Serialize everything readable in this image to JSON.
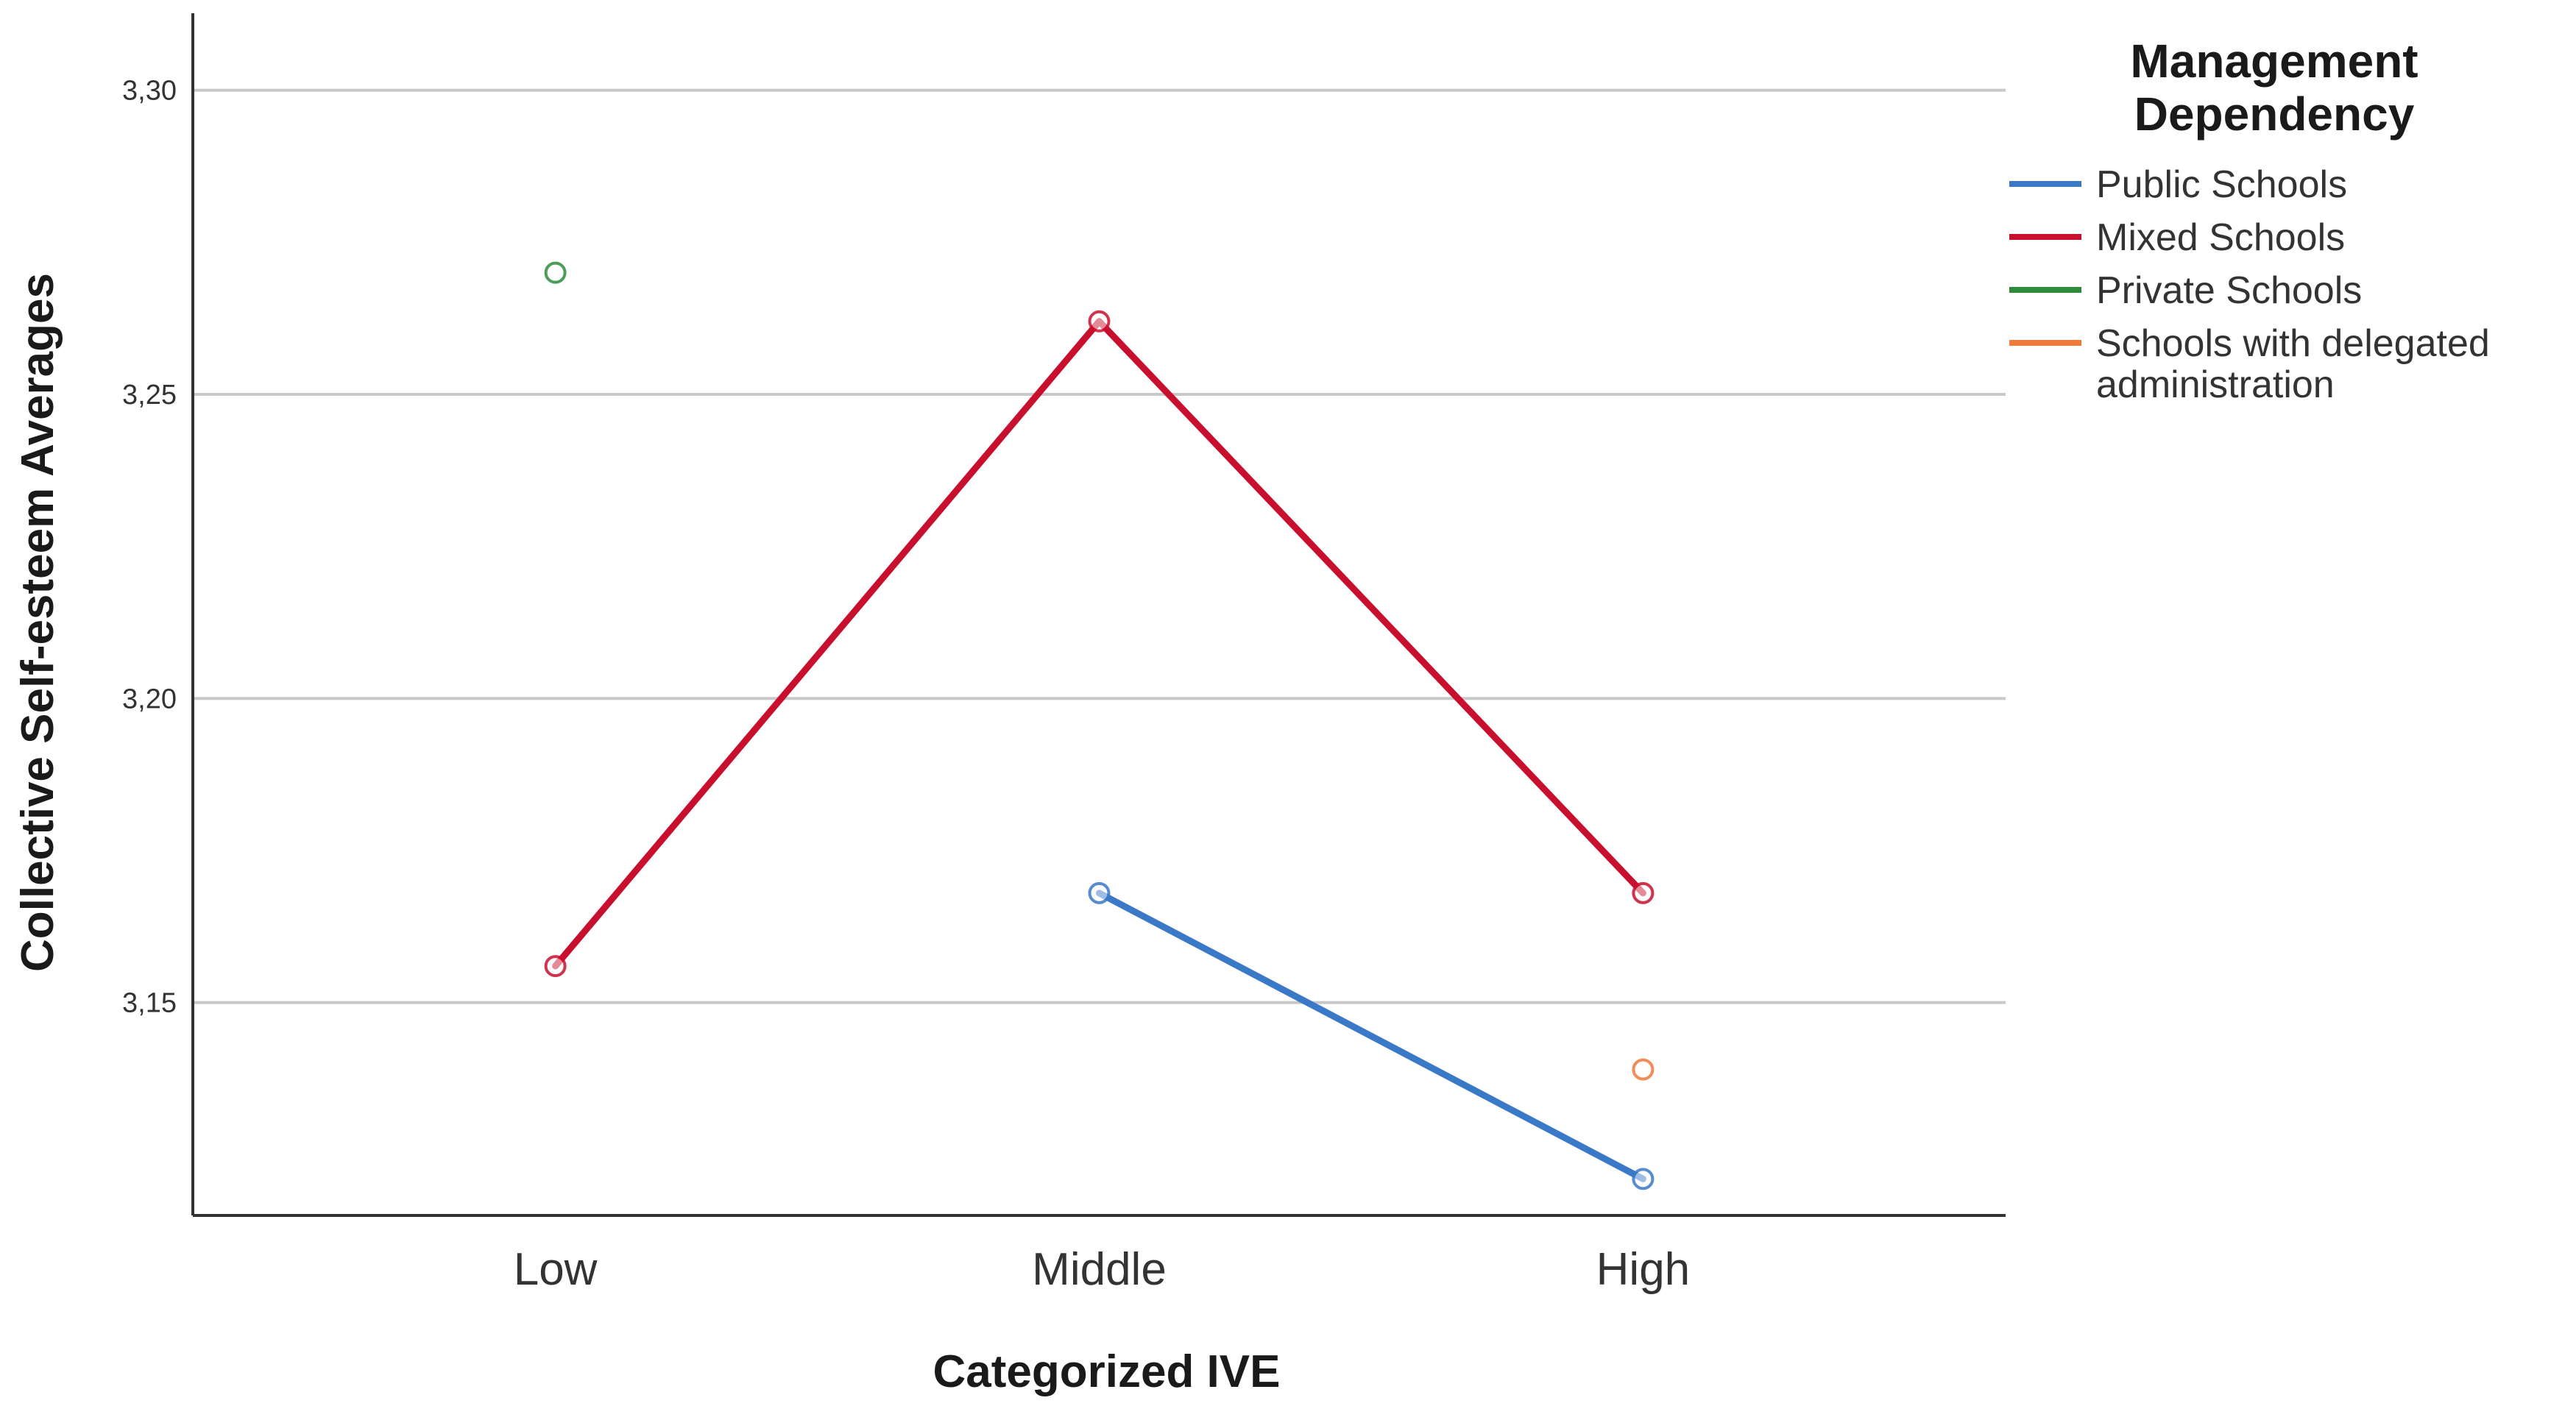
{
  "chart_data": {
    "type": "line",
    "xlabel": "Categorized IVE",
    "ylabel": "Collective Self-esteem Averages",
    "categories": [
      "Low",
      "Middle",
      "High"
    ],
    "ylim": [
      3.115,
      3.31
    ],
    "yticks": [
      {
        "value": 3.15,
        "label": "3,15"
      },
      {
        "value": 3.2,
        "label": "3,20"
      },
      {
        "value": 3.25,
        "label": "3,25"
      },
      {
        "value": 3.3,
        "label": "3,30"
      }
    ],
    "grid": true,
    "legend": {
      "title_lines": [
        "Management",
        "Dependency"
      ],
      "placement": "right"
    },
    "series": [
      {
        "name": "Public Schools",
        "name_lines": [
          "Public Schools"
        ],
        "color": "#3a78c8",
        "values": [
          null,
          3.168,
          3.121
        ]
      },
      {
        "name": "Mixed Schools",
        "name_lines": [
          "Mixed Schools"
        ],
        "color": "#c8102e",
        "values": [
          3.156,
          3.262,
          3.168
        ]
      },
      {
        "name": "Private Schools",
        "name_lines": [
          "Private Schools"
        ],
        "color": "#2e8b3a",
        "values": [
          3.27,
          null,
          null
        ]
      },
      {
        "name": "Schools with delegated administration",
        "name_lines": [
          "Schools with delegated",
          "administration"
        ],
        "color": "#f07a3a",
        "values": [
          null,
          null,
          3.139
        ]
      }
    ]
  }
}
